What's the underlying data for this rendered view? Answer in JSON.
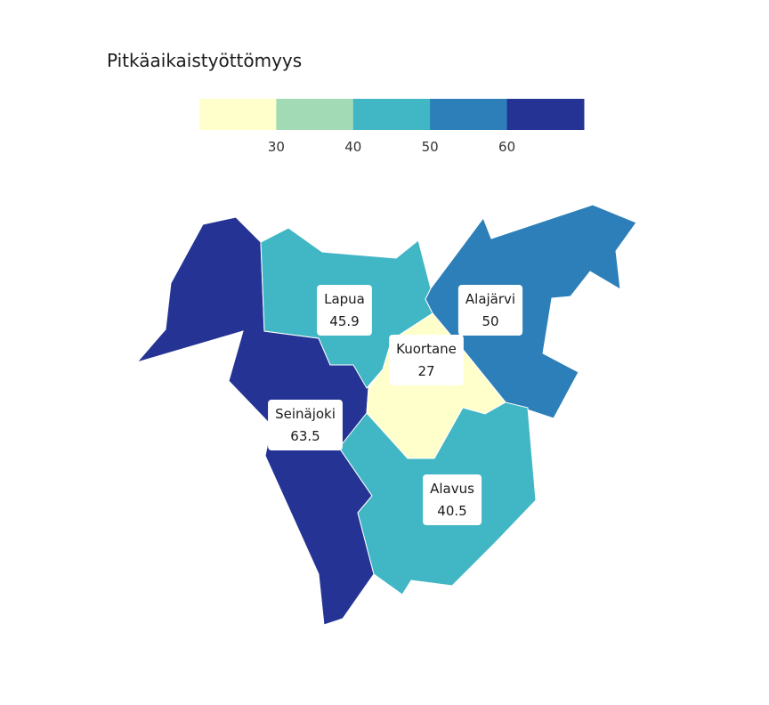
{
  "title": "Pitkäaikaistyöttömyys",
  "legend": {
    "bins": [
      {
        "min": 20,
        "max": 30,
        "color": "#ffffcc"
      },
      {
        "min": 30,
        "max": 40,
        "color": "#a1dab4"
      },
      {
        "min": 40,
        "max": 50,
        "color": "#41b6c4"
      },
      {
        "min": 50,
        "max": 60,
        "color": "#2c7fb8"
      },
      {
        "min": 60,
        "max": 70,
        "color": "#253494"
      }
    ],
    "ticks": [
      "30",
      "40",
      "50",
      "60"
    ]
  },
  "regions": [
    {
      "name": "Lapua",
      "value": "45.9"
    },
    {
      "name": "Alajärvi",
      "value": "50"
    },
    {
      "name": "Kuortane",
      "value": "27"
    },
    {
      "name": "Seinäjoki",
      "value": "63.5"
    },
    {
      "name": "Alavus",
      "value": "40.5"
    }
  ]
}
